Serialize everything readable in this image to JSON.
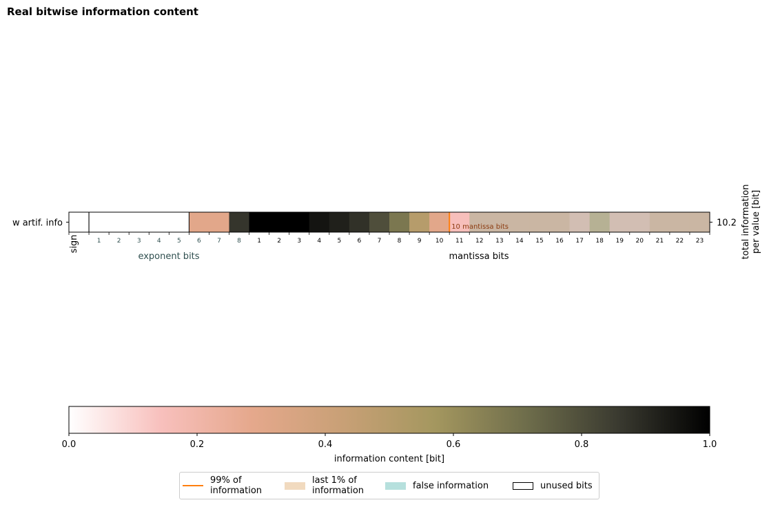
{
  "title": "Real bitwise information content",
  "chart_data": [
    {
      "type": "heatmap",
      "row_label": "w artif. info",
      "right_axis_label": "total information\nper value [bit]",
      "right_tick": "10.2",
      "sign_label": "sign",
      "exponent_label": "exponent bits",
      "mantissa_label": "mantissa bits",
      "exponent_ticks": [
        "1",
        "2",
        "3",
        "4",
        "5",
        "6",
        "7",
        "8"
      ],
      "mantissa_ticks": [
        "1",
        "2",
        "3",
        "4",
        "5",
        "6",
        "7",
        "8",
        "9",
        "10",
        "11",
        "12",
        "13",
        "14",
        "15",
        "16",
        "17",
        "18",
        "19",
        "20",
        "21",
        "22",
        "23"
      ],
      "sign_value": null,
      "exponent_values": [
        null,
        null,
        null,
        null,
        null,
        0.3,
        0.3,
        0.87
      ],
      "mantissa_values": [
        1.0,
        1.0,
        1.0,
        0.95,
        0.92,
        0.88,
        0.8,
        0.68,
        0.5,
        0.3,
        0.15,
        0.3,
        0.3,
        0.3,
        0.3,
        0.3,
        0.22,
        0.45,
        0.22,
        0.22,
        0.3,
        0.3,
        0.3
      ],
      "unused_bits": 5,
      "threshold_99_after_mantissa_bit": 10,
      "threshold_label": "10 mantissa bits",
      "false_information_from_mantissa_bit": 12,
      "colors": {
        "threshold": "#ff7f0e",
        "false_info": "#9fd4d0",
        "last_1pct": "#efd4b4",
        "exponent_text": "#2f4f4f",
        "threshold_text": "#8b3a0f"
      }
    },
    {
      "type": "colorbar",
      "xlabel": "information content [bit]",
      "range": [
        0,
        1
      ],
      "ticks": [
        "0.0",
        "0.2",
        "0.4",
        "0.6",
        "0.8",
        "1.0"
      ],
      "colormap": [
        "#ffffff",
        "#f8c0bd",
        "#e5a88c",
        "#c8a076",
        "#a4975f",
        "#6e6d4b",
        "#3a3a30",
        "#000000"
      ]
    }
  ],
  "legend": [
    {
      "label": "99% of\ninformation",
      "kind": "line",
      "color": "#ff7f0e"
    },
    {
      "label": "last 1% of\ninformation",
      "kind": "patch",
      "color": "#efd4b4"
    },
    {
      "label": "false information",
      "kind": "patch",
      "color": "#a9dbd7"
    },
    {
      "label": "unused bits",
      "kind": "box",
      "color": "#ffffff"
    }
  ]
}
